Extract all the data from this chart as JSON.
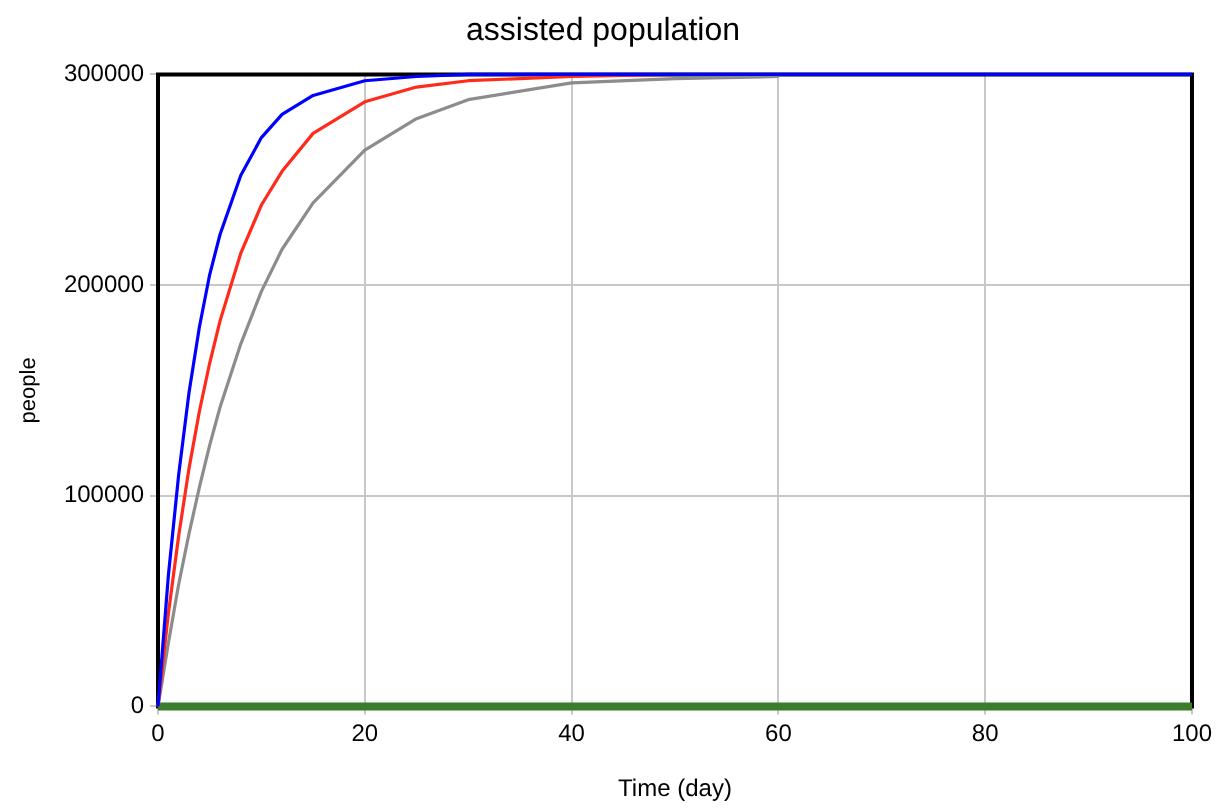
{
  "chart_data": {
    "type": "line",
    "title": "assisted population",
    "xlabel": "Time (day)",
    "ylabel": "people",
    "x": [
      0,
      1,
      2,
      3,
      4,
      5,
      6,
      8,
      10,
      12,
      15,
      20,
      25,
      30,
      40,
      50,
      60,
      80,
      100
    ],
    "series": [
      {
        "color": "#0000ff",
        "values": [
          0,
          62000,
          110000,
          149000,
          180000,
          205000,
          224000,
          252000,
          270000,
          281000,
          290000,
          297000,
          299000,
          300000,
          300000,
          300000,
          300000,
          300000,
          300000
        ]
      },
      {
        "color": "#ff2a1a",
        "values": [
          0,
          44000,
          81000,
          113000,
          140000,
          163000,
          183000,
          215000,
          238000,
          254000,
          272000,
          287000,
          294000,
          297000,
          299000,
          300000,
          null,
          null,
          null
        ]
      },
      {
        "color": "#8c8c8c",
        "values": [
          0,
          30000,
          58000,
          82000,
          104000,
          124000,
          142000,
          172000,
          197000,
          217000,
          239000,
          264000,
          279000,
          288000,
          296000,
          298000,
          299000,
          null,
          null
        ]
      },
      {
        "color": "#3a7d2a",
        "values": [
          0,
          0,
          0,
          0,
          0,
          0,
          0,
          0,
          0,
          0,
          0,
          0,
          0,
          0,
          0,
          0,
          0,
          0,
          0
        ]
      }
    ],
    "xlim": [
      0,
      100
    ],
    "xticks": [
      0,
      20,
      40,
      60,
      80,
      100
    ],
    "ylim": [
      0,
      300000
    ],
    "yticks": [
      0,
      100000,
      200000,
      300000
    ],
    "grid": true,
    "legend": false,
    "marker": "none",
    "line_style": "solid"
  }
}
